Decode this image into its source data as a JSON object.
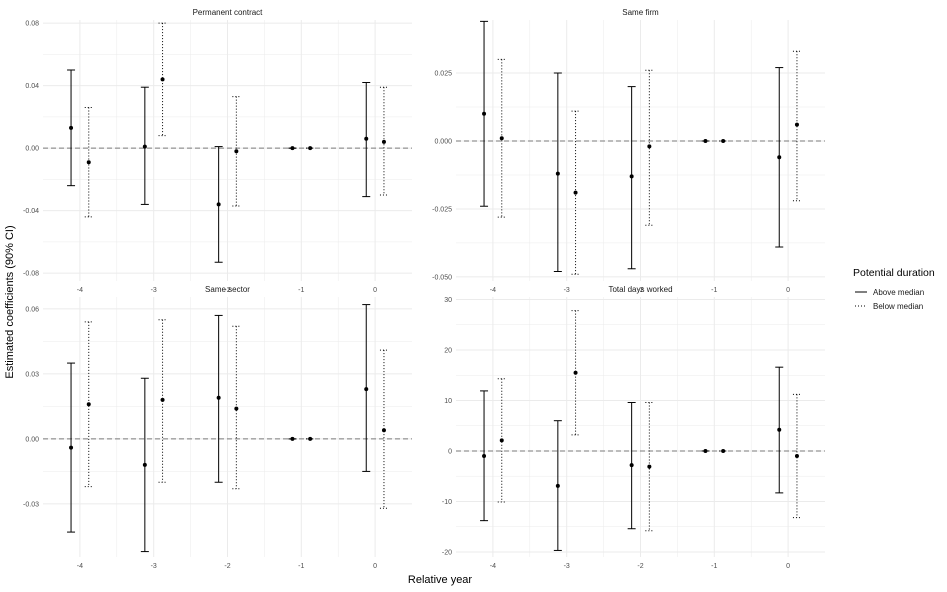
{
  "colors": {
    "grid": "#ebebeb",
    "line": "#000000",
    "zero_line": "#7a7a7a",
    "text": "#4d4d4d"
  },
  "axes": {
    "xlabel": "Relative year",
    "ylabel": "Estimated coefficients (90% CI)"
  },
  "legend": {
    "title": "Potential duration",
    "position": "right",
    "entries": [
      {
        "label": "Above median",
        "style": "solid"
      },
      {
        "label": "Below median",
        "style": "dotted"
      }
    ]
  },
  "chart_data": [
    {
      "type": "errorbar",
      "title": "Permanent contract",
      "xlabel": "Relative year",
      "ylabel": "Estimated coefficients (90% CI)",
      "x_ticks": [
        -4,
        -3,
        -2,
        -1,
        0
      ],
      "x_tick_labels": [
        "-4",
        "-3",
        "-2",
        "-1",
        "0"
      ],
      "xlim": [
        -4.5,
        0.5
      ],
      "ylim": [
        -0.085,
        0.082
      ],
      "y_ticks": [
        -0.08,
        -0.04,
        0.0,
        0.04,
        0.08
      ],
      "y_tick_labels": [
        "-0.08",
        "-0.04",
        "0.00",
        "0.04",
        "0.08"
      ],
      "series": [
        {
          "name": "Above median",
          "style": "solid",
          "points": [
            {
              "x": -4,
              "estimate": 0.013,
              "low": -0.024,
              "high": 0.05
            },
            {
              "x": -3,
              "estimate": 0.001,
              "low": -0.036,
              "high": 0.039
            },
            {
              "x": -2,
              "estimate": -0.036,
              "low": -0.073,
              "high": 0.001
            },
            {
              "x": -1,
              "estimate": 0.0,
              "low": 0.0,
              "high": 0.0
            },
            {
              "x": 0,
              "estimate": 0.006,
              "low": -0.031,
              "high": 0.042
            }
          ]
        },
        {
          "name": "Below median",
          "style": "dotted",
          "points": [
            {
              "x": -4,
              "estimate": -0.009,
              "low": -0.044,
              "high": 0.026
            },
            {
              "x": -3,
              "estimate": 0.044,
              "low": 0.008,
              "high": 0.08
            },
            {
              "x": -2,
              "estimate": -0.002,
              "low": -0.037,
              "high": 0.033
            },
            {
              "x": -1,
              "estimate": 0.0,
              "low": 0.0,
              "high": 0.0
            },
            {
              "x": 0,
              "estimate": 0.004,
              "low": -0.03,
              "high": 0.039
            }
          ]
        }
      ]
    },
    {
      "type": "errorbar",
      "title": "Same firm",
      "xlabel": "Relative year",
      "ylabel": "Estimated coefficients (90% CI)",
      "x_ticks": [
        -4,
        -3,
        -2,
        -1,
        0
      ],
      "x_tick_labels": [
        "-4",
        "-3",
        "-2",
        "-1",
        "0"
      ],
      "xlim": [
        -4.5,
        0.5
      ],
      "ylim": [
        -0.0515,
        0.0445
      ],
      "y_ticks": [
        -0.05,
        -0.025,
        0.0,
        0.025
      ],
      "y_tick_labels": [
        "-0.050",
        "-0.025",
        "0.000",
        "0.025"
      ],
      "series": [
        {
          "name": "Above median",
          "style": "solid",
          "points": [
            {
              "x": -4,
              "estimate": 0.01,
              "low": -0.024,
              "high": 0.044
            },
            {
              "x": -3,
              "estimate": -0.012,
              "low": -0.048,
              "high": 0.025
            },
            {
              "x": -2,
              "estimate": -0.013,
              "low": -0.047,
              "high": 0.02
            },
            {
              "x": -1,
              "estimate": 0.0,
              "low": 0.0,
              "high": 0.0
            },
            {
              "x": 0,
              "estimate": -0.006,
              "low": -0.039,
              "high": 0.027
            }
          ]
        },
        {
          "name": "Below median",
          "style": "dotted",
          "points": [
            {
              "x": -4,
              "estimate": 0.001,
              "low": -0.028,
              "high": 0.03
            },
            {
              "x": -3,
              "estimate": -0.019,
              "low": -0.049,
              "high": 0.011
            },
            {
              "x": -2,
              "estimate": -0.002,
              "low": -0.031,
              "high": 0.026
            },
            {
              "x": -1,
              "estimate": 0.0,
              "low": 0.0,
              "high": 0.0
            },
            {
              "x": 0,
              "estimate": 0.006,
              "low": -0.022,
              "high": 0.033
            }
          ]
        }
      ]
    },
    {
      "type": "errorbar",
      "title": "Same sector",
      "xlabel": "Relative year",
      "ylabel": "Estimated coefficients (90% CI)",
      "x_ticks": [
        -4,
        -3,
        -2,
        -1,
        0
      ],
      "x_tick_labels": [
        "-4",
        "-3",
        "-2",
        "-1",
        "0"
      ],
      "xlim": [
        -4.5,
        0.5
      ],
      "ylim": [
        -0.0545,
        0.0655
      ],
      "y_ticks": [
        -0.03,
        0.0,
        0.03,
        0.06
      ],
      "y_tick_labels": [
        "-0.03",
        "0.00",
        "0.03",
        "0.06"
      ],
      "series": [
        {
          "name": "Above median",
          "style": "solid",
          "points": [
            {
              "x": -4,
              "estimate": -0.004,
              "low": -0.043,
              "high": 0.035
            },
            {
              "x": -3,
              "estimate": -0.012,
              "low": -0.052,
              "high": 0.028
            },
            {
              "x": -2,
              "estimate": 0.019,
              "low": -0.02,
              "high": 0.057
            },
            {
              "x": -1,
              "estimate": 0.0,
              "low": 0.0,
              "high": 0.0
            },
            {
              "x": 0,
              "estimate": 0.023,
              "low": -0.015,
              "high": 0.062
            }
          ]
        },
        {
          "name": "Below median",
          "style": "dotted",
          "points": [
            {
              "x": -4,
              "estimate": 0.016,
              "low": -0.022,
              "high": 0.054
            },
            {
              "x": -3,
              "estimate": 0.018,
              "low": -0.02,
              "high": 0.055
            },
            {
              "x": -2,
              "estimate": 0.014,
              "low": -0.023,
              "high": 0.052
            },
            {
              "x": -1,
              "estimate": 0.0,
              "low": 0.0,
              "high": 0.0
            },
            {
              "x": 0,
              "estimate": 0.004,
              "low": -0.032,
              "high": 0.041
            }
          ]
        }
      ]
    },
    {
      "type": "errorbar",
      "title": "Total days worked",
      "xlabel": "Relative year",
      "ylabel": "Estimated coefficients (90% CI)",
      "x_ticks": [
        -4,
        -3,
        -2,
        -1,
        0
      ],
      "x_tick_labels": [
        "-4",
        "-3",
        "-2",
        "-1",
        "0"
      ],
      "xlim": [
        -4.5,
        0.5
      ],
      "ylim": [
        -21,
        30.5
      ],
      "y_ticks": [
        -20,
        -10,
        0,
        10,
        20,
        30
      ],
      "y_tick_labels": [
        "-20",
        "-10",
        "0",
        "10",
        "20",
        "30"
      ],
      "series": [
        {
          "name": "Above median",
          "style": "solid",
          "points": [
            {
              "x": -4,
              "estimate": -1.0,
              "low": -13.8,
              "high": 11.9
            },
            {
              "x": -3,
              "estimate": -6.9,
              "low": -19.7,
              "high": 6.0
            },
            {
              "x": -2,
              "estimate": -2.8,
              "low": -15.4,
              "high": 9.6
            },
            {
              "x": -1,
              "estimate": 0.0,
              "low": 0.0,
              "high": 0.0
            },
            {
              "x": 0,
              "estimate": 4.2,
              "low": -8.3,
              "high": 16.6
            }
          ]
        },
        {
          "name": "Below median",
          "style": "dotted",
          "points": [
            {
              "x": -4,
              "estimate": 2.1,
              "low": -10.1,
              "high": 14.3
            },
            {
              "x": -3,
              "estimate": 15.5,
              "low": 3.2,
              "high": 27.8
            },
            {
              "x": -2,
              "estimate": -3.1,
              "low": -15.8,
              "high": 9.6
            },
            {
              "x": -1,
              "estimate": 0.0,
              "low": 0.0,
              "high": 0.0
            },
            {
              "x": 0,
              "estimate": -1.0,
              "low": -13.2,
              "high": 11.2
            }
          ]
        }
      ]
    }
  ]
}
